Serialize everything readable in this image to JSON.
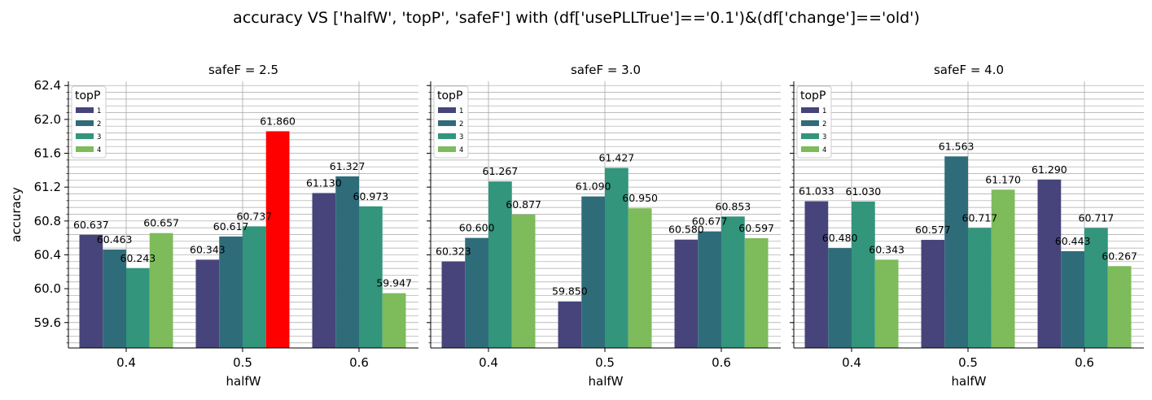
{
  "figure": {
    "title": "accuracy VS ['halfW', 'topP', 'safeF'] with (df['usePLLTrue']=='0.1')&(df['change']=='old')"
  },
  "colors": {
    "series": [
      "#46447a",
      "#2e6c79",
      "#32957c",
      "#7dbb5b"
    ],
    "highlight": "#ff0000",
    "grid": "#a7a7a7",
    "axis": "#000000"
  },
  "chart_data": [
    {
      "type": "bar",
      "title": "safeF = 2.5",
      "xlabel": "halfW",
      "ylabel": "accuracy",
      "categories": [
        "0.4",
        "0.5",
        "0.6"
      ],
      "ylim": [
        59.3,
        62.45
      ],
      "yticks": [
        "59.6",
        "60.0",
        "60.4",
        "60.8",
        "61.2",
        "61.6",
        "62.0",
        "62.4"
      ],
      "grid": true,
      "legend": {
        "title": "topP",
        "position": "top-left"
      },
      "series": [
        {
          "name": "1",
          "values": [
            60.637,
            60.343,
            61.13
          ],
          "labels": [
            "60.637",
            "60.343",
            "61.130"
          ]
        },
        {
          "name": "2",
          "values": [
            60.463,
            60.617,
            61.327
          ],
          "labels": [
            "60.463",
            "60.617",
            "61.327"
          ]
        },
        {
          "name": "3",
          "values": [
            60.243,
            60.737,
            60.973
          ],
          "labels": [
            "60.243",
            "60.737",
            "60.973"
          ]
        },
        {
          "name": "4",
          "values": [
            60.657,
            61.86,
            59.947
          ],
          "labels": [
            "60.657",
            "61.860",
            "59.947"
          ]
        }
      ],
      "highlight": {
        "series": 3,
        "category": 1
      }
    },
    {
      "type": "bar",
      "title": "safeF = 3.0",
      "xlabel": "halfW",
      "ylabel": "",
      "categories": [
        "0.4",
        "0.5",
        "0.6"
      ],
      "ylim": [
        59.3,
        62.45
      ],
      "yticks": [],
      "grid": true,
      "legend": {
        "title": "topP",
        "position": "top-left"
      },
      "series": [
        {
          "name": "1",
          "values": [
            60.323,
            59.85,
            60.58
          ],
          "labels": [
            "60.323",
            "59.850",
            "60.580"
          ]
        },
        {
          "name": "2",
          "values": [
            60.6,
            61.09,
            60.677
          ],
          "labels": [
            "60.600",
            "61.090",
            "60.677"
          ]
        },
        {
          "name": "3",
          "values": [
            61.267,
            61.427,
            60.853
          ],
          "labels": [
            "61.267",
            "61.427",
            "60.853"
          ]
        },
        {
          "name": "4",
          "values": [
            60.877,
            60.95,
            60.597
          ],
          "labels": [
            "60.877",
            "60.950",
            "60.597"
          ]
        }
      ]
    },
    {
      "type": "bar",
      "title": "safeF = 4.0",
      "xlabel": "halfW",
      "ylabel": "",
      "categories": [
        "0.4",
        "0.5",
        "0.6"
      ],
      "ylim": [
        59.3,
        62.45
      ],
      "yticks": [],
      "grid": true,
      "legend": {
        "title": "topP",
        "position": "top-left"
      },
      "series": [
        {
          "name": "1",
          "values": [
            61.033,
            60.577,
            61.29
          ],
          "labels": [
            "61.033",
            "60.577",
            "61.290"
          ]
        },
        {
          "name": "2",
          "values": [
            60.48,
            61.563,
            60.443
          ],
          "labels": [
            "60.480",
            "61.563",
            "60.443"
          ]
        },
        {
          "name": "3",
          "values": [
            61.03,
            60.717,
            60.717
          ],
          "labels": [
            "61.030",
            "60.717",
            "60.717"
          ]
        },
        {
          "name": "4",
          "values": [
            60.343,
            61.17,
            60.267
          ],
          "labels": [
            "60.343",
            "61.170",
            "60.267"
          ]
        }
      ]
    }
  ]
}
